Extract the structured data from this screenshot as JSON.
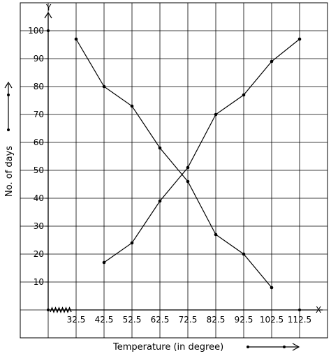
{
  "chart_data": {
    "type": "line",
    "xlabel": "Temperature (in degree)",
    "ylabel": "No. of days",
    "x_axis_name": "X",
    "y_axis_name": "Y",
    "x": [
      32.5,
      42.5,
      52.5,
      62.5,
      72.5,
      82.5,
      92.5,
      102.5,
      112.5
    ],
    "x_tick_labels": [
      "32.5",
      "42.5",
      "52.5",
      "62.5",
      "72.5",
      "82.5",
      "92.5",
      "102.5",
      "112.5"
    ],
    "y_ticks": [
      10,
      20,
      30,
      40,
      50,
      60,
      70,
      80,
      90,
      100
    ],
    "y_tick_labels": [
      "10",
      "20",
      "30",
      "40",
      "50",
      "60",
      "70",
      "80",
      "90",
      "100"
    ],
    "xlim": [
      22.5,
      122.5
    ],
    "ylim": [
      0,
      110
    ],
    "grid": true,
    "axis_break": "zigzag at origin on x-axis",
    "series": [
      {
        "x": [
          32.5,
          42.5,
          52.5,
          62.5,
          72.5,
          82.5,
          92.5,
          102.5
        ],
        "values": [
          97,
          80,
          73,
          58,
          46,
          27,
          20,
          8
        ]
      },
      {
        "x": [
          42.5,
          52.5,
          62.5,
          72.5,
          82.5,
          92.5,
          102.5,
          112.5
        ],
        "values": [
          17,
          24,
          39,
          51,
          70,
          77,
          89,
          97
        ]
      }
    ]
  }
}
